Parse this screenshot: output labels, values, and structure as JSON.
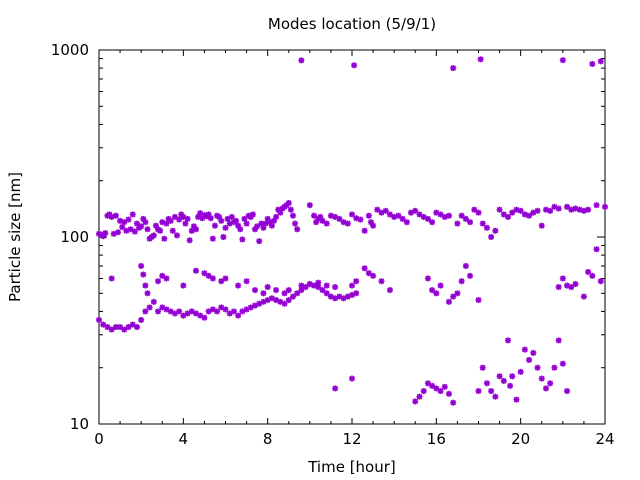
{
  "chart_data": {
    "type": "scatter",
    "title": "Modes location (5/9/1)",
    "xlabel": "Time [hour]",
    "ylabel": "Particle size [nm]",
    "xlim": [
      0,
      24
    ],
    "ylim": [
      10,
      1000
    ],
    "yscale": "log",
    "xticks": [
      0,
      4,
      8,
      12,
      16,
      20,
      24
    ],
    "xtick_labels": [
      "0",
      "4",
      "8",
      "12",
      "16",
      "20",
      "24"
    ],
    "yticks": [
      10,
      100,
      1000
    ],
    "ytick_labels": [
      "10",
      "100",
      "1000"
    ],
    "grid": false,
    "legend": "none",
    "marker": "asterisk",
    "color": "#9400d3",
    "series": [
      {
        "points": [
          [
            0.0,
            104
          ],
          [
            0.1,
            103
          ],
          [
            0.2,
            101
          ],
          [
            0.3,
            105
          ],
          [
            0.4,
            130
          ],
          [
            0.5,
            132
          ],
          [
            0.6,
            128
          ],
          [
            0.7,
            104
          ],
          [
            0.8,
            130
          ],
          [
            0.9,
            106
          ],
          [
            1.0,
            122
          ],
          [
            1.1,
            113
          ],
          [
            1.2,
            120
          ],
          [
            1.3,
            108
          ],
          [
            1.4,
            124
          ],
          [
            1.5,
            110
          ],
          [
            1.6,
            132
          ],
          [
            1.7,
            107
          ],
          [
            1.8,
            118
          ],
          [
            1.9,
            112
          ],
          [
            2.0,
            114
          ],
          [
            2.1,
            125
          ],
          [
            2.2,
            120
          ],
          [
            2.3,
            110
          ],
          [
            2.4,
            98
          ],
          [
            2.5,
            100
          ],
          [
            2.6,
            102
          ],
          [
            2.7,
            115
          ],
          [
            2.8,
            110
          ],
          [
            2.9,
            108
          ],
          [
            3.0,
            120
          ],
          [
            3.1,
            98
          ],
          [
            3.2,
            118
          ],
          [
            3.3,
            125
          ],
          [
            3.4,
            122
          ],
          [
            3.5,
            108
          ],
          [
            3.6,
            128
          ],
          [
            3.7,
            102
          ],
          [
            3.8,
            124
          ],
          [
            3.9,
            132
          ],
          [
            4.0,
            128
          ],
          [
            4.1,
            118
          ],
          [
            4.2,
            125
          ],
          [
            4.3,
            96
          ],
          [
            4.4,
            108
          ],
          [
            4.5,
            114
          ],
          [
            4.6,
            110
          ],
          [
            4.7,
            128
          ],
          [
            4.8,
            134
          ],
          [
            4.9,
            126
          ],
          [
            5.0,
            131
          ],
          [
            5.1,
            129
          ],
          [
            5.2,
            132
          ],
          [
            5.3,
            126
          ],
          [
            5.4,
            98
          ],
          [
            5.5,
            115
          ],
          [
            5.6,
            130
          ],
          [
            5.7,
            128
          ],
          [
            5.8,
            122
          ],
          [
            5.9,
            100
          ],
          [
            6.0,
            112
          ],
          [
            6.1,
            125
          ],
          [
            6.2,
            118
          ],
          [
            6.3,
            128
          ],
          [
            6.4,
            120
          ],
          [
            6.5,
            122
          ],
          [
            6.6,
            115
          ],
          [
            6.7,
            110
          ],
          [
            6.8,
            97
          ],
          [
            6.9,
            125
          ],
          [
            7.0,
            118
          ],
          [
            7.1,
            130
          ],
          [
            7.2,
            128
          ],
          [
            7.3,
            132
          ],
          [
            7.4,
            110
          ],
          [
            7.5,
            114
          ],
          [
            7.6,
            95
          ],
          [
            7.7,
            118
          ],
          [
            7.8,
            112
          ],
          [
            7.9,
            118
          ],
          [
            8.0,
            125
          ],
          [
            8.1,
            120
          ],
          [
            8.2,
            115
          ],
          [
            8.3,
            122
          ],
          [
            8.4,
            128
          ],
          [
            8.5,
            140
          ],
          [
            8.6,
            135
          ],
          [
            8.7,
            142
          ],
          [
            8.8,
            145
          ],
          [
            8.9,
            148
          ],
          [
            9.0,
            152
          ],
          [
            9.1,
            140
          ],
          [
            9.2,
            130
          ],
          [
            9.3,
            118
          ],
          [
            9.4,
            110
          ],
          [
            9.6,
            880
          ],
          [
            10.0,
            148
          ],
          [
            10.2,
            130
          ],
          [
            10.3,
            120
          ],
          [
            10.4,
            125
          ],
          [
            10.5,
            128
          ],
          [
            10.6,
            122
          ],
          [
            10.8,
            118
          ],
          [
            11.0,
            130
          ],
          [
            11.2,
            128
          ],
          [
            11.4,
            125
          ],
          [
            11.6,
            120
          ],
          [
            11.8,
            118
          ],
          [
            12.0,
            132
          ],
          [
            12.1,
            828
          ],
          [
            12.2,
            126
          ],
          [
            12.4,
            124
          ],
          [
            12.6,
            108
          ],
          [
            12.8,
            130
          ],
          [
            12.9,
            120
          ],
          [
            13.0,
            115
          ],
          [
            13.2,
            140
          ],
          [
            13.4,
            135
          ],
          [
            13.6,
            138
          ],
          [
            13.8,
            132
          ],
          [
            14.0,
            128
          ],
          [
            14.2,
            130
          ],
          [
            14.4,
            125
          ],
          [
            14.6,
            120
          ],
          [
            14.8,
            135
          ],
          [
            15.0,
            138
          ],
          [
            15.2,
            132
          ],
          [
            15.4,
            128
          ],
          [
            15.6,
            125
          ],
          [
            15.8,
            120
          ],
          [
            16.0,
            135
          ],
          [
            16.2,
            132
          ],
          [
            16.4,
            128
          ],
          [
            16.6,
            130
          ],
          [
            16.8,
            800
          ],
          [
            17.0,
            118
          ],
          [
            17.2,
            130
          ],
          [
            17.4,
            125
          ],
          [
            17.6,
            120
          ],
          [
            17.8,
            140
          ],
          [
            18.0,
            135
          ],
          [
            18.1,
            892
          ],
          [
            18.2,
            118
          ],
          [
            18.4,
            112
          ],
          [
            18.6,
            100
          ],
          [
            18.8,
            108
          ],
          [
            19.0,
            140
          ],
          [
            19.2,
            132
          ],
          [
            19.4,
            128
          ],
          [
            19.6,
            135
          ],
          [
            19.8,
            140
          ],
          [
            20.0,
            138
          ],
          [
            20.2,
            132
          ],
          [
            20.4,
            130
          ],
          [
            20.6,
            135
          ],
          [
            20.8,
            138
          ],
          [
            21.0,
            115
          ],
          [
            21.2,
            140
          ],
          [
            21.4,
            138
          ],
          [
            21.6,
            145
          ],
          [
            21.8,
            142
          ],
          [
            22.0,
            882
          ],
          [
            22.2,
            145
          ],
          [
            22.4,
            140
          ],
          [
            22.6,
            142
          ],
          [
            22.8,
            140
          ],
          [
            23.0,
            138
          ],
          [
            23.2,
            140
          ],
          [
            23.4,
            842
          ],
          [
            23.6,
            148
          ],
          [
            23.8,
            870
          ],
          [
            24.0,
            145
          ],
          [
            0.0,
            36
          ],
          [
            0.2,
            34
          ],
          [
            0.4,
            33
          ],
          [
            0.6,
            32
          ],
          [
            0.8,
            33
          ],
          [
            1.0,
            33
          ],
          [
            1.2,
            32
          ],
          [
            1.4,
            33
          ],
          [
            1.6,
            34
          ],
          [
            1.8,
            33
          ],
          [
            2.0,
            36
          ],
          [
            2.2,
            40
          ],
          [
            2.4,
            42
          ],
          [
            2.6,
            45
          ],
          [
            2.8,
            40
          ],
          [
            3.0,
            42
          ],
          [
            3.2,
            41
          ],
          [
            3.4,
            40
          ],
          [
            3.6,
            39
          ],
          [
            3.8,
            40
          ],
          [
            4.0,
            38
          ],
          [
            4.2,
            39
          ],
          [
            4.4,
            40
          ],
          [
            4.6,
            39
          ],
          [
            4.8,
            38
          ],
          [
            5.0,
            37
          ],
          [
            5.2,
            40
          ],
          [
            5.4,
            41
          ],
          [
            5.6,
            40
          ],
          [
            5.8,
            42
          ],
          [
            6.0,
            41
          ],
          [
            6.2,
            39
          ],
          [
            6.4,
            40
          ],
          [
            6.6,
            38
          ],
          [
            6.8,
            40
          ],
          [
            7.0,
            41
          ],
          [
            7.2,
            42
          ],
          [
            7.4,
            43
          ],
          [
            7.6,
            44
          ],
          [
            7.8,
            45
          ],
          [
            8.0,
            46
          ],
          [
            8.2,
            47
          ],
          [
            8.4,
            46
          ],
          [
            8.6,
            45
          ],
          [
            8.8,
            44
          ],
          [
            9.0,
            46
          ],
          [
            9.2,
            48
          ],
          [
            9.4,
            50
          ],
          [
            9.6,
            52
          ],
          [
            9.8,
            54
          ],
          [
            10.0,
            56
          ],
          [
            10.2,
            55
          ],
          [
            10.4,
            54
          ],
          [
            10.6,
            52
          ],
          [
            10.8,
            50
          ],
          [
            11.0,
            48
          ],
          [
            11.2,
            47
          ],
          [
            11.4,
            48
          ],
          [
            11.6,
            47
          ],
          [
            11.8,
            48
          ],
          [
            12.0,
            49
          ],
          [
            12.2,
            50
          ],
          [
            0.6,
            60
          ],
          [
            2.0,
            70
          ],
          [
            2.1,
            63
          ],
          [
            2.2,
            55
          ],
          [
            2.3,
            50
          ],
          [
            2.8,
            58
          ],
          [
            3.0,
            62
          ],
          [
            3.2,
            60
          ],
          [
            4.0,
            55
          ],
          [
            4.6,
            66
          ],
          [
            5.0,
            64
          ],
          [
            5.2,
            62
          ],
          [
            5.4,
            60
          ],
          [
            5.8,
            58
          ],
          [
            6.0,
            60
          ],
          [
            6.6,
            55
          ],
          [
            7.0,
            58
          ],
          [
            7.4,
            52
          ],
          [
            7.8,
            50
          ],
          [
            8.0,
            54
          ],
          [
            8.4,
            52
          ],
          [
            8.8,
            50
          ],
          [
            9.0,
            52
          ],
          [
            9.6,
            55
          ],
          [
            10.0,
            56
          ],
          [
            10.4,
            57
          ],
          [
            10.8,
            55
          ],
          [
            11.2,
            54
          ],
          [
            12.0,
            55
          ],
          [
            12.2,
            58
          ],
          [
            12.6,
            68
          ],
          [
            12.8,
            64
          ],
          [
            13.0,
            62
          ],
          [
            13.4,
            58
          ],
          [
            13.8,
            52
          ],
          [
            15.6,
            60
          ],
          [
            15.8,
            52
          ],
          [
            16.0,
            50
          ],
          [
            16.2,
            55
          ],
          [
            16.6,
            45
          ],
          [
            16.8,
            48
          ],
          [
            17.0,
            50
          ],
          [
            17.2,
            58
          ],
          [
            17.4,
            70
          ],
          [
            17.6,
            62
          ],
          [
            18.0,
            46
          ],
          [
            21.8,
            54
          ],
          [
            22.0,
            60
          ],
          [
            22.2,
            55
          ],
          [
            22.4,
            54
          ],
          [
            22.6,
            56
          ],
          [
            23.0,
            48
          ],
          [
            23.2,
            65
          ],
          [
            23.4,
            62
          ],
          [
            23.6,
            86
          ],
          [
            23.8,
            58
          ],
          [
            11.2,
            15.5
          ],
          [
            12.0,
            17.5
          ],
          [
            15.0,
            13.2
          ],
          [
            15.2,
            14
          ],
          [
            15.4,
            15
          ],
          [
            15.6,
            16.5
          ],
          [
            15.8,
            16
          ],
          [
            16.0,
            15.5
          ],
          [
            16.2,
            15
          ],
          [
            16.4,
            15.8
          ],
          [
            16.6,
            14.5
          ],
          [
            16.8,
            13
          ],
          [
            18.0,
            15
          ],
          [
            18.2,
            20
          ],
          [
            18.4,
            16.5
          ],
          [
            18.6,
            15
          ],
          [
            18.8,
            14
          ],
          [
            19.0,
            18
          ],
          [
            19.2,
            17
          ],
          [
            19.4,
            28
          ],
          [
            19.5,
            16
          ],
          [
            19.6,
            18
          ],
          [
            19.8,
            13.5
          ],
          [
            20.0,
            19
          ],
          [
            20.2,
            25
          ],
          [
            20.4,
            22
          ],
          [
            20.6,
            24
          ],
          [
            20.8,
            20
          ],
          [
            21.0,
            17.5
          ],
          [
            21.2,
            15.5
          ],
          [
            21.4,
            16.5
          ],
          [
            21.6,
            20
          ],
          [
            21.8,
            28
          ],
          [
            22.0,
            21
          ],
          [
            22.2,
            15
          ]
        ]
      }
    ]
  }
}
